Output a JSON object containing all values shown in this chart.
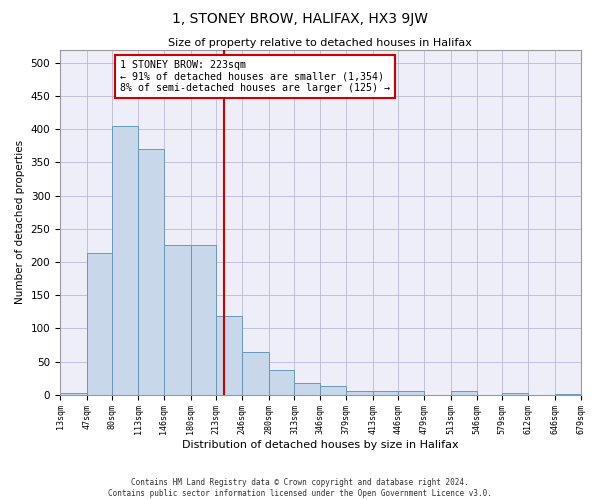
{
  "title": "1, STONEY BROW, HALIFAX, HX3 9JW",
  "subtitle": "Size of property relative to detached houses in Halifax",
  "xlabel": "Distribution of detached houses by size in Halifax",
  "ylabel": "Number of detached properties",
  "annotation_line1": "1 STONEY BROW: 223sqm",
  "annotation_line2": "← 91% of detached houses are smaller (1,354)",
  "annotation_line3": "8% of semi-detached houses are larger (125) →",
  "footer_line1": "Contains HM Land Registry data © Crown copyright and database right 2024.",
  "footer_line2": "Contains public sector information licensed under the Open Government Licence v3.0.",
  "bin_edges": [
    13,
    47,
    80,
    113,
    146,
    180,
    213,
    246,
    280,
    313,
    346,
    379,
    413,
    446,
    479,
    513,
    546,
    579,
    612,
    646,
    679
  ],
  "bin_heights": [
    2,
    214,
    405,
    370,
    226,
    226,
    119,
    65,
    38,
    18,
    13,
    6,
    5,
    5,
    0,
    6,
    0,
    2,
    0,
    1
  ],
  "bar_color": "#c8d8ea",
  "bar_edge_color": "#6699bb",
  "vline_color": "#cc0000",
  "vline_x": 223,
  "annotation_box_color": "#cc0000",
  "grid_color": "#b0b0cc",
  "background_color": "#eeeef8",
  "ylim": [
    0,
    520
  ],
  "yticks": [
    0,
    50,
    100,
    150,
    200,
    250,
    300,
    350,
    400,
    450,
    500
  ]
}
